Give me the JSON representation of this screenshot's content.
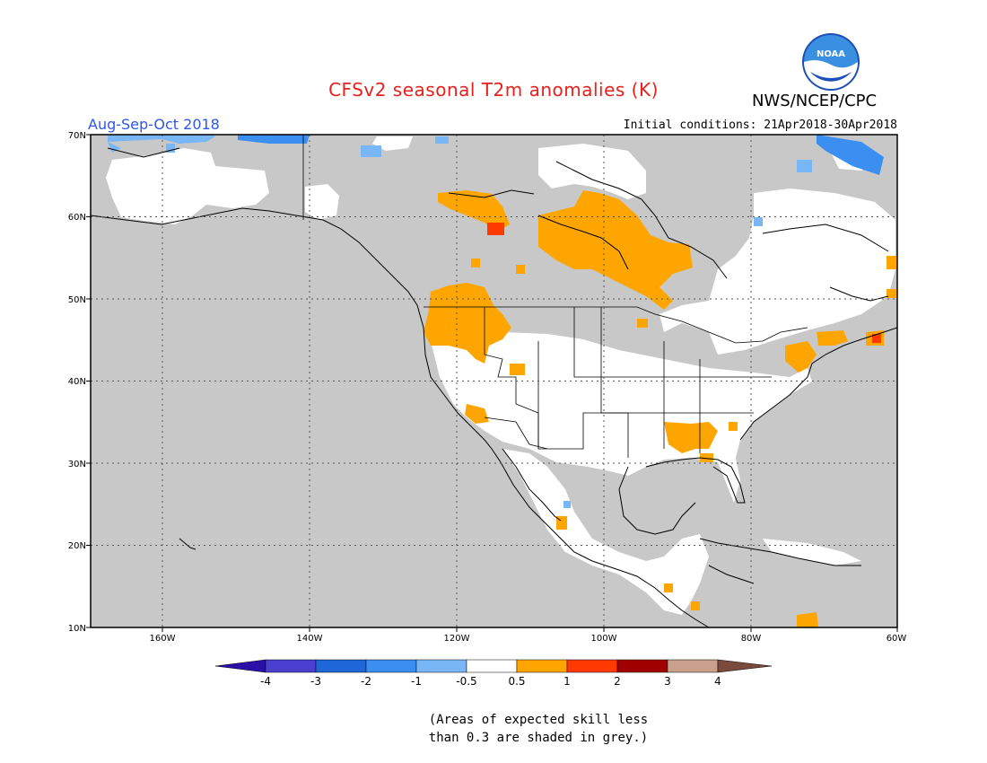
{
  "header": {
    "title": "CFSv2 seasonal T2m anomalies (K)",
    "org": "NWS/NCEP/CPC",
    "season": "Aug-Sep-Oct 2018",
    "initial_conditions": "Initial conditions: 21Apr2018-30Apr2018",
    "logo_text": "NOAA"
  },
  "map": {
    "lat_labels": [
      "70N",
      "60N",
      "50N",
      "40N",
      "30N",
      "20N",
      "10N"
    ],
    "lon_labels": [
      "160W",
      "140W",
      "120W",
      "100W",
      "80W",
      "60W"
    ],
    "skill_mask_color": "#c8c8c8",
    "land_color": "#ffffff"
  },
  "colorbar": {
    "ticks": [
      "-4",
      "-3",
      "-2",
      "-1",
      "-0.5",
      "0.5",
      "1",
      "2",
      "3",
      "4"
    ],
    "colors": [
      "#2a10a8",
      "#4a3fcf",
      "#1f66d8",
      "#3b8ff0",
      "#78b6f5",
      "#ffffff",
      "#ffa500",
      "#ff3a00",
      "#a00000",
      "#c8a08c",
      "#7a4a3c"
    ]
  },
  "note": {
    "line1": "(Areas of expected skill less",
    "line2": "than 0.3 are shaded in grey.)"
  }
}
